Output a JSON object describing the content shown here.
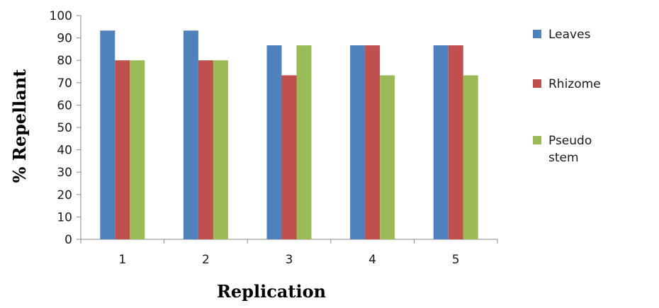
{
  "chart_data": {
    "type": "bar",
    "categories": [
      "1",
      "2",
      "3",
      "4",
      "5"
    ],
    "series": [
      {
        "name": "Leaves",
        "color": "#4F81BD",
        "values": [
          93.3,
          93.3,
          86.7,
          86.7,
          86.7
        ]
      },
      {
        "name": "Rhizome",
        "color": "#C0504D",
        "values": [
          80,
          80,
          73.3,
          86.7,
          86.7
        ]
      },
      {
        "name": "Pseudo stem",
        "color": "#9BBB59",
        "values": [
          80,
          80,
          86.7,
          73.3,
          73.3
        ]
      }
    ],
    "xlabel": "Replication",
    "ylabel": "% Repellant",
    "ylim": [
      0,
      100
    ],
    "yticks": [
      0,
      10,
      20,
      30,
      40,
      50,
      60,
      70,
      80,
      90,
      100
    ],
    "grid": false,
    "legend_position": "right"
  }
}
